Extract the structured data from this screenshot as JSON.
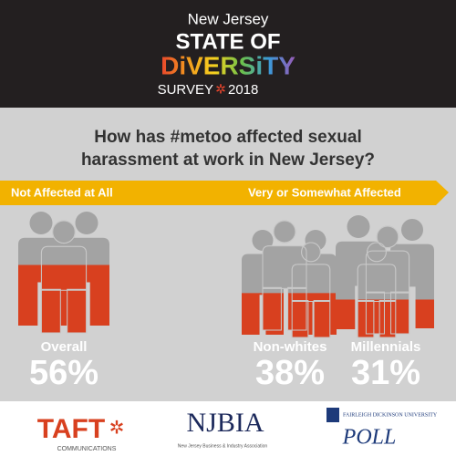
{
  "header": {
    "line1": "New Jersey",
    "line2": "STATE OF",
    "line3": "DiVERSiTY",
    "line4": "SURVEY",
    "year": "2018"
  },
  "chart_data": {
    "type": "pictogram",
    "title": "How has #metoo affected sexual harassment at work in New Jersey?",
    "scale_left": "Not Affected at All",
    "scale_right": "Very or Somewhat Affected",
    "categories": [
      "Overall",
      "Non-whites",
      "Millennials"
    ],
    "values": [
      56,
      38,
      31
    ],
    "value_labels": [
      "56%",
      "38%",
      "31%"
    ],
    "fill_color": "#d8401f",
    "figure_color": "#a3a3a3"
  },
  "footer": {
    "taft": "TAFT",
    "taft_sub": "COMMUNICATIONS",
    "njbia": "NJBIA",
    "njbia_sub": "New Jersey Business & Industry Association",
    "fdu": "FAIRLEIGH DICKINSON UNIVERSITY",
    "poll": "POLL"
  }
}
